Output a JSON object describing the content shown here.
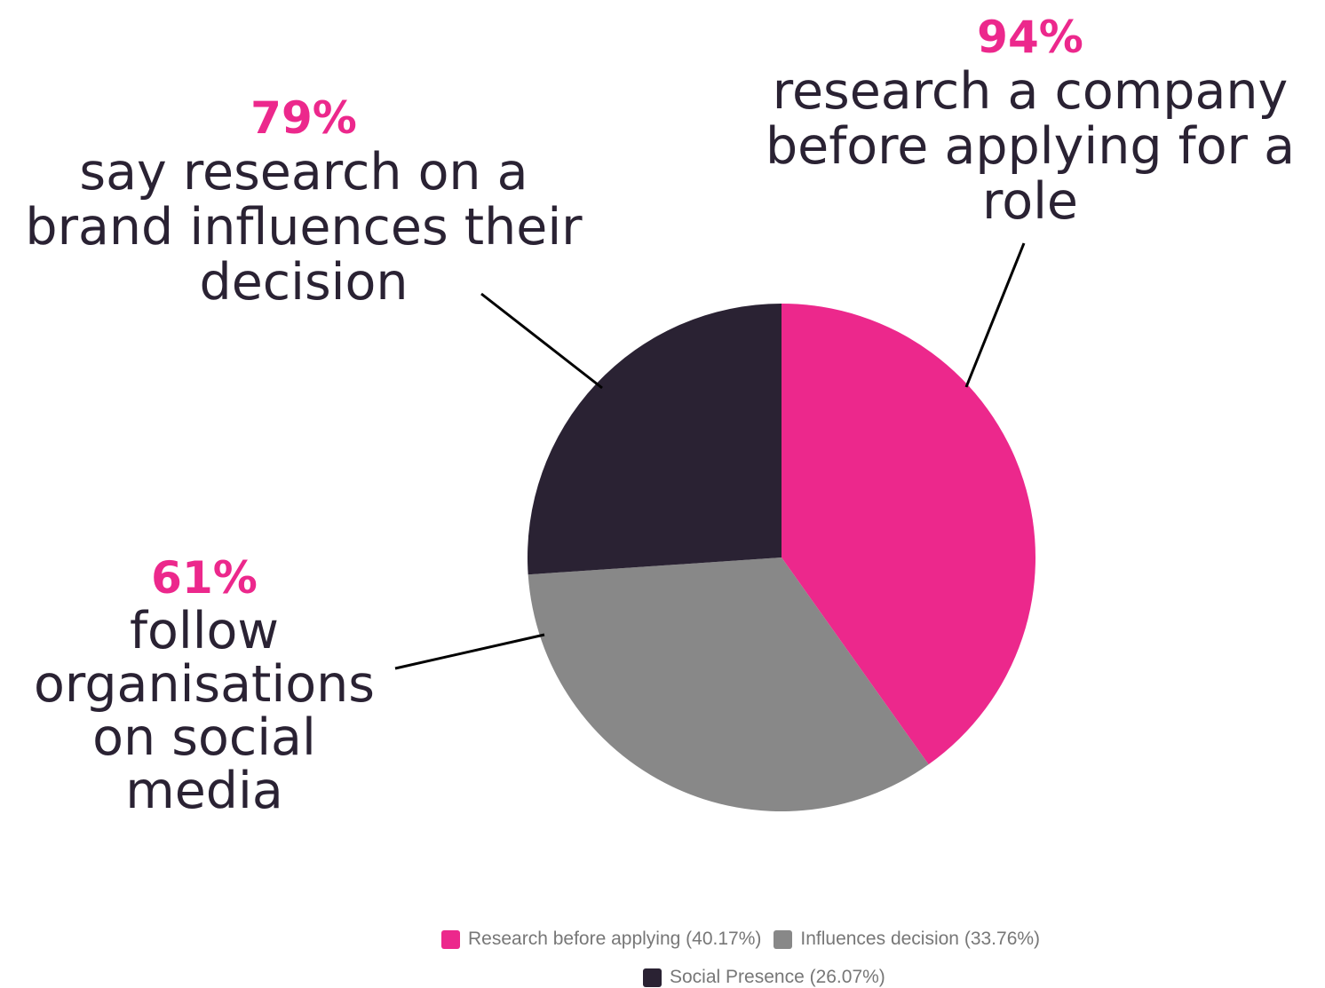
{
  "chart_data": {
    "type": "pie",
    "slices": [
      {
        "name": "Research before applying",
        "value": 40.17,
        "color": "#ec288c"
      },
      {
        "name": "Influences decision",
        "value": 33.76,
        "color": "#888888"
      },
      {
        "name": "Social Presence",
        "value": 26.07,
        "color": "#2a2233"
      }
    ],
    "legend_placement": "bottom",
    "legend": [
      {
        "label": "Research before applying (40.17%)",
        "color": "#ec288c"
      },
      {
        "label": "Influences decision (33.76%)",
        "color": "#888888"
      },
      {
        "label": "Social Presence (26.07%)",
        "color": "#2a2233"
      }
    ],
    "annotations": [
      {
        "id": "research",
        "pct": "94%",
        "lines": [
          "research a company",
          "before applying for a",
          "role"
        ]
      },
      {
        "id": "influence",
        "pct": "79%",
        "lines": [
          "say research on a",
          "brand influences their",
          "decision"
        ]
      },
      {
        "id": "social",
        "pct": "61%",
        "lines": [
          "follow",
          "organisations",
          "on social",
          "media"
        ]
      }
    ]
  },
  "colors": {
    "accent": "#ec288c",
    "dark": "#2a2233",
    "grey": "#888888",
    "legend_text": "#777777"
  }
}
